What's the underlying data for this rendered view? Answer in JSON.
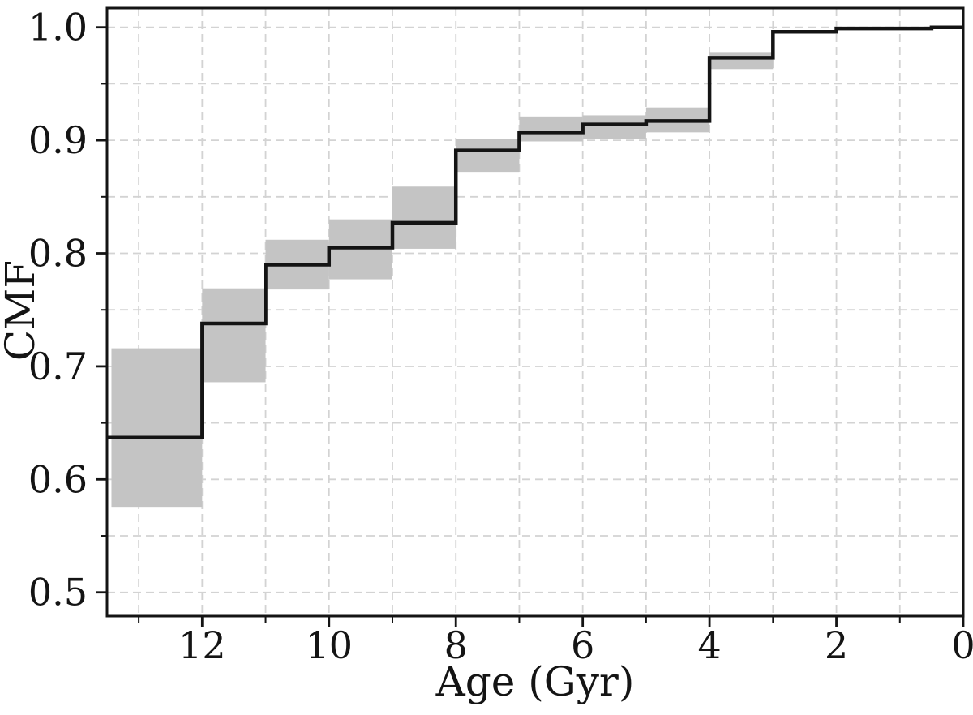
{
  "chart_data": {
    "type": "line",
    "subtype": "step-cumulative-distribution",
    "title": "",
    "xlabel": "Age (Gyr)",
    "ylabel": "CMF",
    "xlim": [
      13.5,
      0
    ],
    "x_axis_reversed": true,
    "ylim": [
      0.479,
      1.017
    ],
    "grid": true,
    "grid_style": "dashed",
    "legend_position": "none",
    "x_major_ticks": [
      12,
      10,
      8,
      6,
      4,
      2,
      0
    ],
    "x_major_tick_labels": [
      "12",
      "10",
      "8",
      "6",
      "4",
      "2",
      "0"
    ],
    "x_minor_ticks": [
      13,
      11,
      9,
      7,
      5,
      3,
      1
    ],
    "y_major_ticks": [
      0.5,
      0.6,
      0.7,
      0.8,
      0.9,
      1.0
    ],
    "y_major_tick_labels": [
      "0.5",
      "0.6",
      "0.7",
      "0.8",
      "0.9",
      "1.0"
    ],
    "y_minor_ticks": [
      0.55,
      0.65,
      0.75,
      0.85,
      0.95
    ],
    "x_gridlines": [
      13,
      12,
      11,
      10,
      9,
      8,
      7,
      6,
      5,
      4,
      3,
      2,
      1
    ],
    "y_gridlines": [
      0.5,
      0.55,
      0.6,
      0.65,
      0.7,
      0.75,
      0.8,
      0.85,
      0.9,
      0.95,
      1.0
    ],
    "series": [
      {
        "name": "CMF",
        "type": "step",
        "color": "#141414",
        "points": [
          [
            13.5,
            0.637
          ],
          [
            12,
            0.738
          ],
          [
            11,
            0.79
          ],
          [
            10,
            0.805
          ],
          [
            9,
            0.827
          ],
          [
            8,
            0.891
          ],
          [
            7,
            0.907
          ],
          [
            6,
            0.914
          ],
          [
            5,
            0.917
          ],
          [
            4,
            0.973
          ],
          [
            3,
            0.996
          ],
          [
            2,
            0.999
          ],
          [
            0.5,
            1.0
          ],
          [
            0,
            1.0
          ]
        ]
      }
    ],
    "steps": [
      {
        "x_start": 13.5,
        "x_end": 12,
        "cmf": 0.637
      },
      {
        "x_start": 12,
        "x_end": 11,
        "cmf": 0.738
      },
      {
        "x_start": 11,
        "x_end": 10,
        "cmf": 0.79
      },
      {
        "x_start": 10,
        "x_end": 9,
        "cmf": 0.805
      },
      {
        "x_start": 9,
        "x_end": 8,
        "cmf": 0.827
      },
      {
        "x_start": 8,
        "x_end": 7,
        "cmf": 0.891
      },
      {
        "x_start": 7,
        "x_end": 6,
        "cmf": 0.907
      },
      {
        "x_start": 6,
        "x_end": 5,
        "cmf": 0.914
      },
      {
        "x_start": 5,
        "x_end": 4,
        "cmf": 0.917
      },
      {
        "x_start": 4,
        "x_end": 3,
        "cmf": 0.973
      },
      {
        "x_start": 3,
        "x_end": 2,
        "cmf": 0.996
      },
      {
        "x_start": 2,
        "x_end": 0.5,
        "cmf": 0.999
      },
      {
        "x_start": 0.5,
        "x_end": 0,
        "cmf": 1.0
      }
    ],
    "error_bands": [
      {
        "x_start": 13.43,
        "x_end": 12,
        "lo": 0.575,
        "hi": 0.716
      },
      {
        "x_start": 12,
        "x_end": 11,
        "lo": 0.686,
        "hi": 0.769
      },
      {
        "x_start": 11,
        "x_end": 10,
        "lo": 0.768,
        "hi": 0.812
      },
      {
        "x_start": 10,
        "x_end": 9,
        "lo": 0.777,
        "hi": 0.83
      },
      {
        "x_start": 9,
        "x_end": 8,
        "lo": 0.804,
        "hi": 0.859
      },
      {
        "x_start": 8,
        "x_end": 7,
        "lo": 0.872,
        "hi": 0.901
      },
      {
        "x_start": 7,
        "x_end": 6,
        "lo": 0.899,
        "hi": 0.921
      },
      {
        "x_start": 6,
        "x_end": 5,
        "lo": 0.901,
        "hi": 0.922
      },
      {
        "x_start": 5,
        "x_end": 4,
        "lo": 0.907,
        "hi": 0.929
      },
      {
        "x_start": 4,
        "x_end": 3,
        "lo": 0.963,
        "hi": 0.978
      }
    ],
    "colors": {
      "line": "#141414",
      "band": "#c4c4c4",
      "grid": "#d3d3d3",
      "spine": "#141414",
      "background": "#ffffff"
    }
  }
}
